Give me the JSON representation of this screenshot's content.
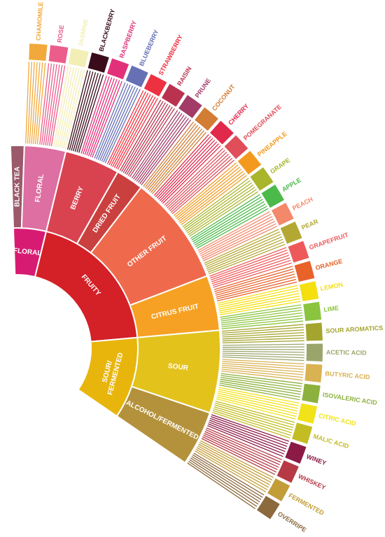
{
  "wheel": [
    {
      "label": [
        "FLORAL"
      ],
      "color": "#d81b72",
      "children": [
        {
          "label": "BLACK TEA",
          "color": "#9a5a6a",
          "children": []
        },
        {
          "label": "FLORAL",
          "color": "#dd6fa2",
          "children": [
            {
              "label": "CHAMOMILE",
              "color": "#f2a93b"
            },
            {
              "label": "ROSE",
              "color": "#eb5e8c"
            },
            {
              "label": "JASMINE",
              "color": "#f3eeb5"
            }
          ]
        }
      ]
    },
    {
      "label": [
        "FRUITY"
      ],
      "color": "#d42027",
      "children": [
        {
          "label": "BERRY",
          "color": "#d9434f",
          "children": [
            {
              "label": "BLACKBERRY",
              "color": "#3a0b1b"
            },
            {
              "label": "RASPBERRY",
              "color": "#e2317a"
            },
            {
              "label": "BLUEBERRY",
              "color": "#6670b5"
            },
            {
              "label": "STRAWBERRY",
              "color": "#ee3140"
            }
          ]
        },
        {
          "label": "DRIED FRUIT",
          "color": "#c9403f",
          "children": [
            {
              "label": "RAISIN",
              "color": "#b9334f"
            },
            {
              "label": "PRUNE",
              "color": "#a23c66"
            }
          ]
        },
        {
          "label": "OTHER FRUIT",
          "color": "#ef6a4d",
          "children": [
            {
              "label": "COCONUT",
              "color": "#d27d33"
            },
            {
              "label": "CHERRY",
              "color": "#e1294b"
            },
            {
              "label": "POMEGRANATE",
              "color": "#e04e5a"
            },
            {
              "label": "PINEAPPLE",
              "color": "#f39a1e"
            },
            {
              "label": "GRAPE",
              "color": "#a9b52b"
            },
            {
              "label": "APPLE",
              "color": "#4cba4a"
            },
            {
              "label": "PEACH",
              "color": "#f3896a"
            },
            {
              "label": "PEAR",
              "color": "#b4a834"
            }
          ]
        },
        {
          "label": "CITRUS FRUIT",
          "color": "#f6a123",
          "children": [
            {
              "label": "GRAPEFRUIT",
              "color": "#ee5a5a"
            },
            {
              "label": "ORANGE",
              "color": "#e8622a"
            },
            {
              "label": "LEMON",
              "color": "#f5df0e"
            },
            {
              "label": "LIME",
              "color": "#8bc43f"
            }
          ]
        }
      ]
    },
    {
      "label": [
        "SOUR/",
        "FERMENTED"
      ],
      "color": "#e8b50d",
      "children": [
        {
          "label": "SOUR",
          "color": "#e3c21c",
          "children": [
            {
              "label": "SOUR AROMATICS",
              "color": "#a4a52f"
            },
            {
              "label": "ACETIC ACID",
              "color": "#9aa56c"
            },
            {
              "label": "BUTYRIC ACID",
              "color": "#d9b252"
            },
            {
              "label": "ISOVALERIC ACID",
              "color": "#8db13e"
            },
            {
              "label": "CITRIC ACID",
              "color": "#f2e21a"
            },
            {
              "label": "MALIC ACID",
              "color": "#c3bd23"
            }
          ]
        },
        {
          "label": "ALCOHOL/FERMENTED",
          "color": "#b4923c",
          "children": [
            {
              "label": "WINEY",
              "color": "#8b1a45"
            },
            {
              "label": "WHISKEY",
              "color": "#b63a46"
            },
            {
              "label": "FERMENTED",
              "color": "#c29d38"
            },
            {
              "label": "OVERRIPE",
              "color": "#8c6a3e"
            }
          ]
        }
      ]
    }
  ]
}
